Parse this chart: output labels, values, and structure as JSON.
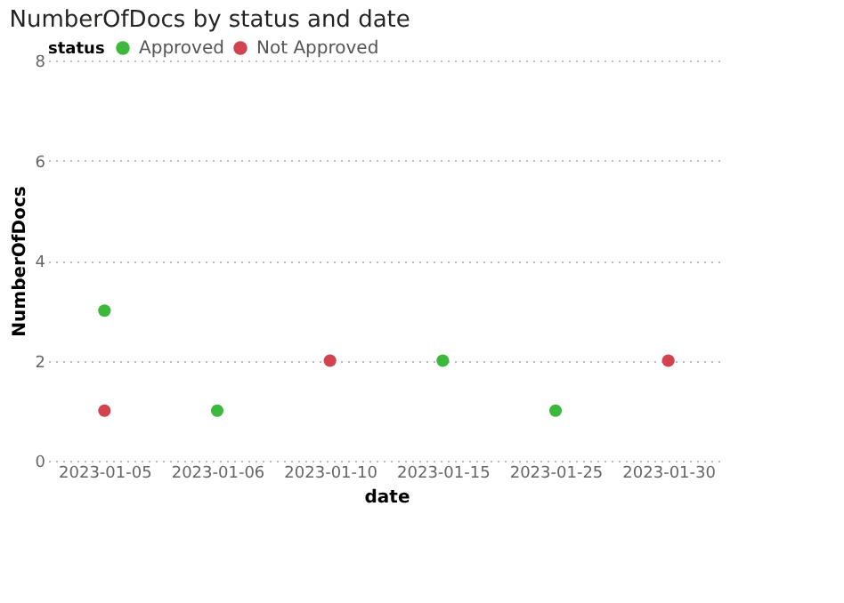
{
  "chart_data": {
    "type": "scatter",
    "title": "NumberOfDocs by status and date",
    "xlabel": "date",
    "ylabel": "NumberOfDocs",
    "legend_title": "status",
    "categories": [
      "2023-01-05",
      "2023-01-06",
      "2023-01-10",
      "2023-01-15",
      "2023-01-25",
      "2023-01-30"
    ],
    "series": [
      {
        "name": "Approved",
        "color": "#3cb93c",
        "values": [
          3,
          1,
          null,
          2,
          1,
          null
        ]
      },
      {
        "name": "Not Approved",
        "color": "#d0434f",
        "values": [
          1,
          null,
          2,
          null,
          null,
          2
        ]
      }
    ],
    "ylim": [
      0,
      8
    ],
    "yticks": [
      0,
      2,
      4,
      6,
      8
    ],
    "grid": "y",
    "legend": "top left",
    "marker": "circle"
  }
}
